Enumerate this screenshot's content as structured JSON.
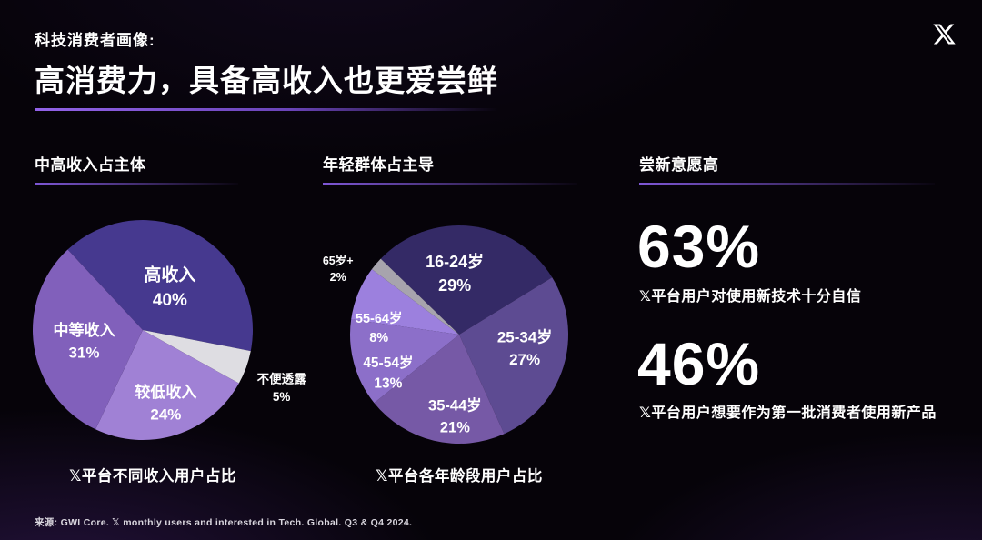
{
  "slide": {
    "eyebrow": "科技消费者画像:",
    "title": "高消费力，具备高收入也更爱尝鲜",
    "source": "来源: GWI Core. 𝕏 monthly users and interested in Tech. Global. Q3 & Q4 2024.",
    "accent_color": "#8a5ce0",
    "background_color": "#060309",
    "logo": "X"
  },
  "sections": [
    {
      "heading": "中高收入占主体"
    },
    {
      "heading": "年轻群体占主导"
    },
    {
      "heading": "尝新意愿高",
      "stats": [
        {
          "value": "63%",
          "desc": "𝕏平台用户对使用新技术十分自信"
        },
        {
          "value": "46%",
          "desc": "𝕏平台用户想要作为第一批消费者使用新产品"
        }
      ]
    }
  ],
  "chart_data": [
    {
      "type": "pie",
      "title": "中高收入占主体",
      "caption": "𝕏平台不同收入用户占比",
      "unit": "%",
      "direction": "clockwise",
      "start_angle_deg": 317,
      "slices": [
        {
          "label": "高收入",
          "value": 40,
          "color": "#46398f",
          "label_angle": 31,
          "label_r": 0.48,
          "font_size": 19
        },
        {
          "label": "不便透露",
          "value": 5,
          "color": "#dedde2",
          "label_angle": 112,
          "label_r": 1.36,
          "font_size": 13.5
        },
        {
          "label": "较低收入",
          "value": 24,
          "color": "#a081d5",
          "label_angle": 162,
          "label_r": 0.68,
          "font_size": 17
        },
        {
          "label": "中等收入",
          "value": 31,
          "color": "#8160bb",
          "label_angle": 261,
          "label_r": 0.54,
          "font_size": 17
        }
      ]
    },
    {
      "type": "pie",
      "title": "年轻群体占主导",
      "caption": "𝕏平台各年龄段用户占比",
      "unit": "%",
      "direction": "clockwise",
      "start_angle_deg": 314,
      "slices": [
        {
          "label": "16-24岁",
          "value": 29,
          "color": "#342a66",
          "label_angle": 356,
          "label_r": 0.58,
          "font_size": 18
        },
        {
          "label": "25-34岁",
          "value": 27,
          "color": "#5d4b92",
          "label_angle": 100,
          "label_r": 0.61,
          "font_size": 17
        },
        {
          "label": "35-44岁",
          "value": 21,
          "color": "#7659a6",
          "label_angle": 183,
          "label_r": 0.73,
          "font_size": 16.5
        },
        {
          "label": "45-54岁",
          "value": 13,
          "color": "#8c6fc9",
          "label_angle": 243,
          "label_r": 0.73,
          "font_size": 15.5
        },
        {
          "label": "55-64岁",
          "value": 8,
          "color": "#9c80de",
          "label_angle": 276,
          "label_r": 0.74,
          "font_size": 14.5
        },
        {
          "label": "65岁+",
          "value": 2,
          "color": "#a7a4ad",
          "label_angle": 299,
          "label_r": 1.27,
          "font_size": 12.5
        }
      ]
    }
  ]
}
